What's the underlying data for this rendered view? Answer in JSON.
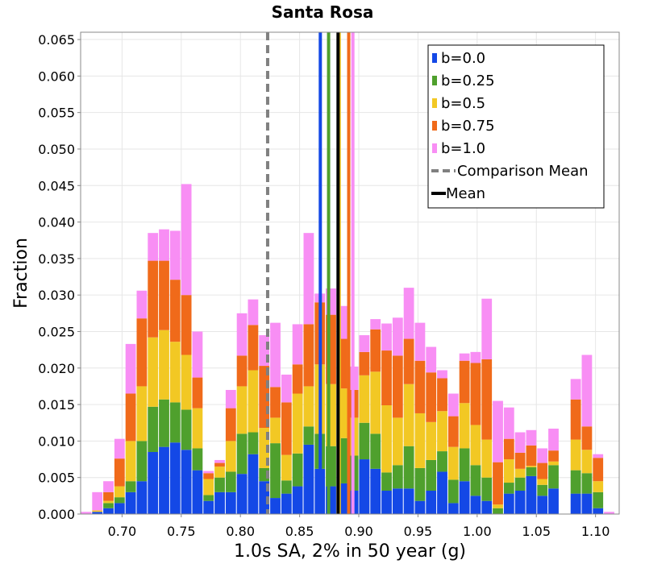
{
  "chart_data": {
    "type": "bar",
    "title": "Santa Rosa",
    "xlabel": "1.0s SA, 2% in 50 year (g)",
    "ylabel": "Fraction",
    "xlim": [
      0.665,
      1.12
    ],
    "ylim": [
      0,
      0.066
    ],
    "stacked": true,
    "bin_width": 0.0094,
    "bin_starts": [
      0.665,
      0.6744,
      0.6838,
      0.6932,
      0.7026,
      0.712,
      0.7214,
      0.7308,
      0.7402,
      0.7496,
      0.759,
      0.7684,
      0.7778,
      0.7872,
      0.7966,
      0.806,
      0.8154,
      0.8248,
      0.8342,
      0.8436,
      0.853,
      0.8624,
      0.8718,
      0.8812,
      0.8906,
      0.9,
      0.9094,
      0.9188,
      0.9282,
      0.9376,
      0.947,
      0.9564,
      0.9658,
      0.9752,
      0.9846,
      0.994,
      1.0034,
      1.0128,
      1.0222,
      1.0316,
      1.041,
      1.0504,
      1.0598,
      1.0692,
      1.0786,
      1.088,
      1.0974,
      1.1068
    ],
    "x_ticks": [
      0.7,
      0.75,
      0.8,
      0.85,
      0.9,
      0.95,
      1.0,
      1.05,
      1.1
    ],
    "x_tick_labels": [
      "0.70",
      "0.75",
      "0.80",
      "0.85",
      "0.90",
      "0.95",
      "1.00",
      "1.05",
      "1.10"
    ],
    "y_ticks": [
      0,
      0.005,
      0.01,
      0.015,
      0.02,
      0.025,
      0.03,
      0.035,
      0.04,
      0.045,
      0.05,
      0.055,
      0.06,
      0.065
    ],
    "y_tick_labels": [
      "0.000",
      "0.005",
      "0.010",
      "0.015",
      "0.020",
      "0.025",
      "0.030",
      "0.035",
      "0.040",
      "0.045",
      "0.050",
      "0.055",
      "0.060",
      "0.065"
    ],
    "grid": true,
    "legend_position": "top-right",
    "series": [
      {
        "name": "b=0.0",
        "color": "#1448e6",
        "values": [
          0,
          0.0003,
          0.0008,
          0.0015,
          0.003,
          0.0045,
          0.0085,
          0.0092,
          0.0098,
          0.0088,
          0.006,
          0.0018,
          0.003,
          0.003,
          0.0055,
          0.0082,
          0.0045,
          0.0022,
          0.0028,
          0.0038,
          0.0095,
          0.0062,
          0.0038,
          0.0042,
          0.0032,
          0.0075,
          0.0062,
          0.0032,
          0.0035,
          0.0035,
          0.0018,
          0.0032,
          0.0058,
          0.0015,
          0.0045,
          0.0025,
          0.0018,
          0,
          0.0028,
          0.0032,
          0.0052,
          0.0025,
          0.0035,
          0,
          0.0028,
          0.0028,
          0.0008,
          0
        ]
      },
      {
        "name": "b=0.25",
        "color": "#4fa02d",
        "values": [
          0,
          0,
          0.0007,
          0.0008,
          0.0015,
          0.0055,
          0.0062,
          0.0065,
          0.0055,
          0.0055,
          0.003,
          0.0008,
          0.002,
          0.0028,
          0.0055,
          0.003,
          0.0018,
          0.0075,
          0.0018,
          0.0045,
          0.0025,
          0.0048,
          0.0055,
          0.0062,
          0.0048,
          0.005,
          0.0048,
          0.0025,
          0.0032,
          0.0058,
          0.0045,
          0.0042,
          0.0028,
          0.0032,
          0.0045,
          0.0042,
          0.0032,
          0.0008,
          0.0015,
          0.0018,
          0.0012,
          0.0015,
          0.0032,
          0,
          0.0032,
          0.0028,
          0.0022,
          0
        ]
      },
      {
        "name": "b=0.5",
        "color": "#f2c824",
        "values": [
          0,
          0.0002,
          0.0003,
          0.0015,
          0.0055,
          0.0075,
          0.0095,
          0.0095,
          0.0083,
          0.0075,
          0.0055,
          0.0022,
          0.0015,
          0.0042,
          0.0065,
          0.0085,
          0.0055,
          0.0035,
          0.0035,
          0.0082,
          0.0055,
          0.0095,
          0.0085,
          0.0068,
          0.0052,
          0.0065,
          0.0085,
          0.0092,
          0.0065,
          0.0085,
          0.0075,
          0.0052,
          0.0055,
          0.0045,
          0.0062,
          0.0055,
          0.0052,
          0.0005,
          0.0032,
          0.0012,
          0.0002,
          0.0008,
          0.0005,
          0,
          0.0042,
          0.0032,
          0.0015,
          0
        ]
      },
      {
        "name": "b=0.75",
        "color": "#f06a1a",
        "values": [
          0,
          0,
          0.0012,
          0.0038,
          0.0065,
          0.0093,
          0.0105,
          0.0095,
          0.0085,
          0.0082,
          0.0042,
          0.0008,
          0.0005,
          0.0045,
          0.0042,
          0.0062,
          0.0085,
          0.0042,
          0.0072,
          0.004,
          0.0085,
          0.0085,
          0.0095,
          0.0068,
          0.0038,
          0.0032,
          0.0058,
          0.0075,
          0.0085,
          0.0062,
          0.0072,
          0.0068,
          0.0045,
          0.0042,
          0.0058,
          0.0085,
          0.011,
          0.0058,
          0.0028,
          0.0022,
          0.0028,
          0.0022,
          0.0015,
          0,
          0.0055,
          0.0032,
          0.0032,
          0
        ]
      },
      {
        "name": "b=1.0",
        "color": "#f88ef4",
        "values": [
          0.0003,
          0.0025,
          0.0015,
          0.0027,
          0.0068,
          0.0038,
          0.0038,
          0.0043,
          0.0067,
          0.0152,
          0.0063,
          0.0003,
          0.0004,
          0.0025,
          0.0058,
          0.0035,
          0.0042,
          0.0088,
          0.0038,
          0.0055,
          0.0125,
          0.0012,
          0.0036,
          0.0045,
          0.0032,
          0.0023,
          0.0014,
          0.0037,
          0.0052,
          0.007,
          0.0052,
          0.0035,
          0.0011,
          0.0031,
          0.001,
          0.0015,
          0.0083,
          0.0084,
          0.0043,
          0.0028,
          0.0021,
          0.002,
          0.003,
          0,
          0.0028,
          0.0098,
          0.0005,
          0.0003
        ]
      }
    ],
    "mean_lines": [
      {
        "name": "b=0.0",
        "x": 0.8675,
        "color": "#1448e6"
      },
      {
        "name": "b=0.25",
        "x": 0.8745,
        "color": "#4fa02d"
      },
      {
        "name": "b=0.5",
        "x": 0.8835,
        "color": "#f2c824"
      },
      {
        "name": "b=0.75",
        "x": 0.8915,
        "color": "#f06a1a"
      },
      {
        "name": "b=1.0",
        "x": 0.895,
        "color": "#f88ef4"
      },
      {
        "name": "Mean",
        "x": 0.8825,
        "color": "#000000"
      },
      {
        "name": "Comparison Mean",
        "x": 0.823,
        "color": "#808080",
        "dashed": true
      }
    ],
    "legend": [
      {
        "label": "b=0.0",
        "color": "#1448e6",
        "kind": "box"
      },
      {
        "label": "b=0.25",
        "color": "#4fa02d",
        "kind": "box"
      },
      {
        "label": "b=0.5",
        "color": "#f2c824",
        "kind": "box"
      },
      {
        "label": "b=0.75",
        "color": "#f06a1a",
        "kind": "box"
      },
      {
        "label": "b=1.0",
        "color": "#f88ef4",
        "kind": "box"
      },
      {
        "label": "Comparison Mean",
        "color": "#808080",
        "kind": "dash"
      },
      {
        "label": "Mean",
        "color": "#000000",
        "kind": "line"
      }
    ]
  }
}
